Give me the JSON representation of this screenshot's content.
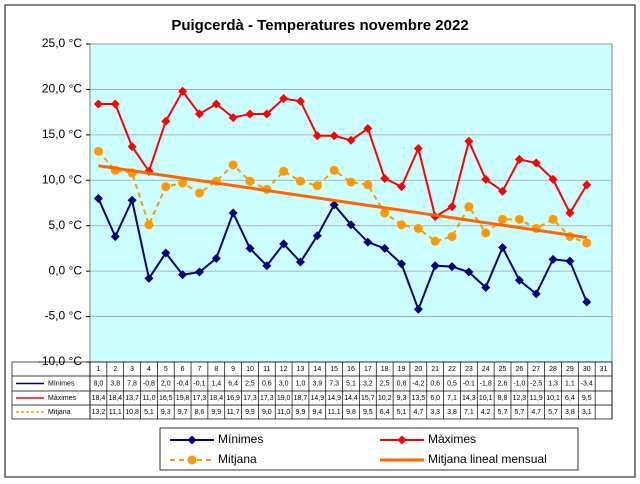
{
  "chart_data": {
    "type": "line",
    "title": "Puigcerdà - Temperatures  novembre  2022",
    "categories": [
      1,
      2,
      3,
      4,
      5,
      6,
      7,
      8,
      9,
      10,
      11,
      12,
      13,
      14,
      15,
      16,
      17,
      18,
      19,
      20,
      21,
      22,
      23,
      24,
      25,
      26,
      27,
      28,
      29,
      30,
      31
    ],
    "series": [
      {
        "name": "Mínimes",
        "color": "#000080",
        "marker": "diamond",
        "dashed": false,
        "values": [
          8.0,
          3.8,
          7.8,
          -0.8,
          2.0,
          -0.4,
          -0.1,
          1.4,
          6.4,
          2.5,
          0.6,
          3.0,
          1.0,
          3.9,
          7.3,
          5.1,
          3.2,
          2.5,
          0.8,
          -4.2,
          0.6,
          0.5,
          -0.1,
          -1.8,
          2.6,
          -1.0,
          -2.5,
          1.3,
          1.1,
          -3.4,
          null
        ],
        "value_labels": [
          "8,0",
          "3,8",
          "7,8",
          "-0,8",
          "2,0",
          "-0,4",
          "-0,1",
          "1,4",
          "6,4",
          "2,5",
          "0,6",
          "3,0",
          "1,0",
          "3,9",
          "7,3",
          "5,1",
          "3,2",
          "2,5",
          "0,8",
          "-4,2",
          "0,6",
          "0,5",
          "-0,1",
          "-1,8",
          "2,6",
          "-1,0",
          "-2,5",
          "1,3",
          "1,1",
          "-3,4",
          null
        ]
      },
      {
        "name": "Màximes",
        "color": "#ff0000",
        "marker": "diamond",
        "dashed": false,
        "values": [
          18.4,
          18.4,
          13.7,
          11.0,
          16.5,
          19.8,
          17.3,
          18.4,
          16.9,
          17.3,
          17.3,
          19.0,
          18.7,
          14.9,
          14.9,
          14.4,
          15.7,
          10.2,
          9.3,
          13.5,
          6.0,
          7.1,
          14.3,
          10.1,
          8.8,
          12.3,
          11.9,
          10.1,
          6.4,
          9.5,
          null
        ],
        "value_labels": [
          "18,4",
          "18,4",
          "13,7",
          "11,0",
          "16,5",
          "19,8",
          "17,3",
          "18,4",
          "16,9",
          "17,3",
          "17,3",
          "19,0",
          "18,7",
          "14,9",
          "14,9",
          "14,4",
          "15,7",
          "10,2",
          "9,3",
          "13,5",
          "6,0",
          "7,1",
          "14,3",
          "10,1",
          "8,8",
          "12,3",
          "11,9",
          "10,1",
          "6,4",
          "9,5",
          null
        ]
      },
      {
        "name": "Mitjana",
        "color": "#ff9900",
        "marker": "circle",
        "dashed": true,
        "values": [
          13.2,
          11.1,
          10.8,
          5.1,
          9.3,
          9.7,
          8.6,
          9.9,
          11.7,
          9.9,
          9.0,
          11.0,
          9.9,
          9.4,
          11.1,
          9.8,
          9.5,
          6.4,
          5.1,
          4.7,
          3.3,
          3.8,
          7.1,
          4.2,
          5.7,
          5.7,
          4.7,
          5.7,
          3.8,
          3.1,
          null
        ],
        "value_labels": [
          "13,2",
          "11,1",
          "10,8",
          "5,1",
          "9,3",
          "9,7",
          "8,6",
          "9,9",
          "11,7",
          "9,9",
          "9,0",
          "11,0",
          "9,9",
          "9,4",
          "11,1",
          "9,8",
          "9,5",
          "6,4",
          "5,1",
          "4,7",
          "3,3",
          "3,8",
          "7,1",
          "4,2",
          "5,7",
          "5,7",
          "4,7",
          "5,7",
          "3,8",
          "3,1",
          null
        ]
      }
    ],
    "trend": {
      "name": "Mitjana lineal mensual",
      "color": "#ff6600",
      "x": [
        1,
        30
      ],
      "values": [
        11.6,
        3.7
      ]
    },
    "ylim": [
      -10,
      25
    ],
    "yticks": [
      {
        "value": -10,
        "label": "-10,0 °C"
      },
      {
        "value": -5,
        "label": "-5,0 °C"
      },
      {
        "value": 0,
        "label": "0,0 °C"
      },
      {
        "value": 5,
        "label": "5,0 °C"
      },
      {
        "value": 10,
        "label": "10,0 °C"
      },
      {
        "value": 15,
        "label": "15,0 °C"
      },
      {
        "value": 20,
        "label": "20,0 °C"
      },
      {
        "value": 25,
        "label": "25,0 °C"
      }
    ],
    "grid": true,
    "legend": "bottom"
  }
}
